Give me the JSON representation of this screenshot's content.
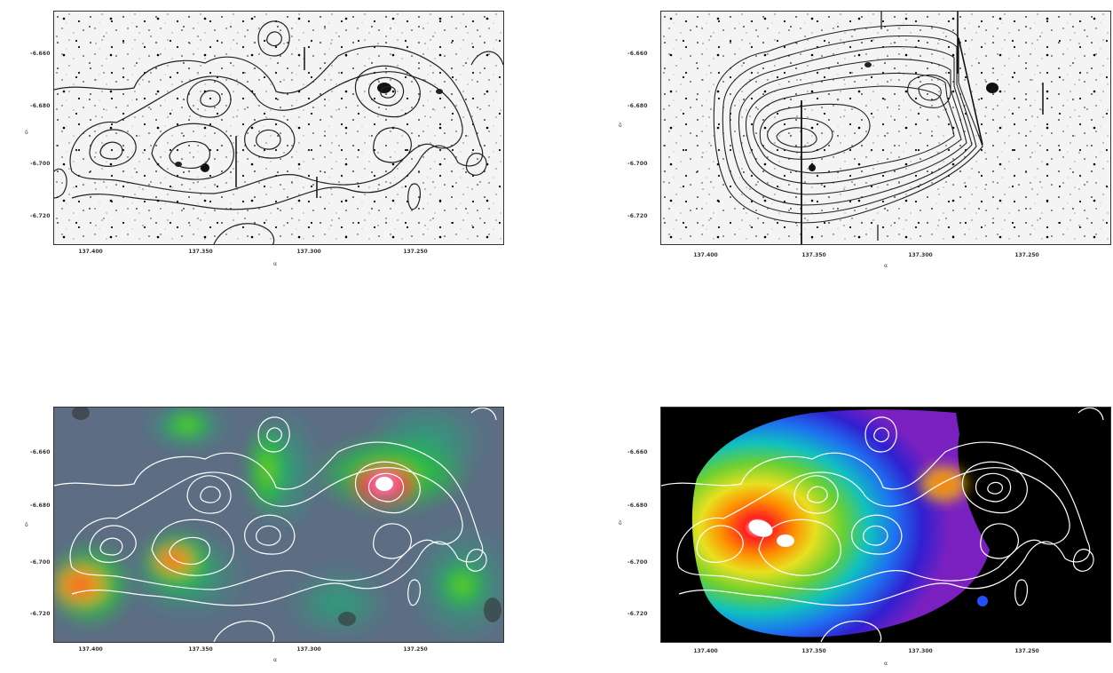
{
  "figure": {
    "panels": [
      {
        "id": "top-left",
        "style": "optical-grayscale",
        "contour_color": "#222222",
        "yticks": [
          "-6.660",
          "-6.680",
          "-6.700",
          "-6.720"
        ],
        "xticks": [
          "137.400",
          "137.350",
          "137.300",
          "137.250"
        ],
        "xlabel": "α",
        "ylabel": "δ"
      },
      {
        "id": "top-right",
        "style": "optical-grayscale-xray-contours",
        "contour_color": "#222222",
        "yticks": [
          "-6.660",
          "-6.680",
          "-6.700",
          "-6.720"
        ],
        "xticks": [
          "137.400",
          "137.350",
          "137.300",
          "137.250"
        ],
        "xlabel": "α",
        "ylabel": "δ"
      },
      {
        "id": "bottom-left",
        "style": "galaxy-density-map",
        "contour_color": "#ffffff",
        "yticks": [
          "-6.660",
          "-6.680",
          "-6.700",
          "-6.720"
        ],
        "xticks": [
          "137.400",
          "137.350",
          "137.300",
          "137.250"
        ],
        "xlabel": "α",
        "ylabel": "δ"
      },
      {
        "id": "bottom-right",
        "style": "xray-rainbow-map",
        "contour_color": "#ffffff",
        "yticks": [
          "-6.660",
          "-6.680",
          "-6.700",
          "-6.720"
        ],
        "xticks": [
          "137.400",
          "137.350",
          "137.300",
          "137.250"
        ],
        "xlabel": "α",
        "ylabel": "δ"
      }
    ]
  }
}
